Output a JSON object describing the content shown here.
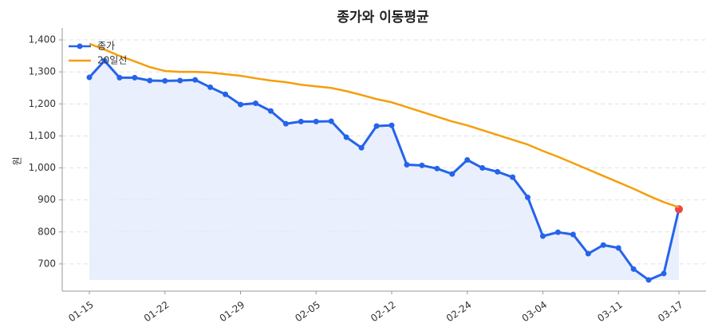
{
  "chart_data": {
    "type": "line",
    "title": "종가와 이동평균",
    "y_label": "원",
    "categories": [
      "01-15",
      null,
      null,
      null,
      null,
      "01-22",
      null,
      null,
      null,
      null,
      "01-29",
      null,
      null,
      null,
      null,
      "02-05",
      null,
      null,
      null,
      null,
      "02-12",
      null,
      null,
      null,
      null,
      "02-24",
      null,
      null,
      null,
      null,
      "03-04",
      null,
      null,
      null,
      null,
      "03-11",
      null,
      null,
      null,
      "03-17"
    ],
    "series": [
      {
        "name": "종가",
        "color": "#2563eb",
        "marker": true,
        "fill": "#e3ebfb",
        "values": [
          1283,
          1335,
          1282,
          1282,
          1273,
          1272,
          1273,
          1275,
          1252,
          1230,
          1198,
          1202,
          1178,
          1138,
          1145,
          1145,
          1146,
          1096,
          1063,
          1131,
          1133,
          1010,
          1008,
          998,
          981,
          1025,
          1000,
          988,
          971,
          908,
          787,
          799,
          792,
          732,
          759,
          750,
          684,
          650,
          670,
          871
        ]
      },
      {
        "name": "20일선",
        "color": "#f59e0b",
        "marker": false,
        "values": [
          1388,
          1370,
          1350,
          1333,
          1315,
          1303,
          1300,
          1300,
          1298,
          1293,
          1288,
          1280,
          1273,
          1268,
          1260,
          1255,
          1250,
          1240,
          1228,
          1215,
          1205,
          1190,
          1175,
          1160,
          1145,
          1133,
          1118,
          1103,
          1088,
          1073,
          1053,
          1035,
          1015,
          995,
          975,
          955,
          935,
          913,
          893,
          877
        ]
      }
    ],
    "highlight_last_color": "#ef4444",
    "ylim": [
      615,
      1425
    ],
    "yticks": [
      {
        "value": 700,
        "label": "700"
      },
      {
        "value": 800,
        "label": "800"
      },
      {
        "value": 900,
        "label": "900"
      },
      {
        "value": 1000,
        "label": "1,000"
      },
      {
        "value": 1100,
        "label": "1,100"
      },
      {
        "value": 1200,
        "label": "1,200"
      },
      {
        "value": 1300,
        "label": "1,300"
      },
      {
        "value": 1400,
        "label": "1,400"
      }
    ],
    "grid": true,
    "legend": "upper left"
  }
}
